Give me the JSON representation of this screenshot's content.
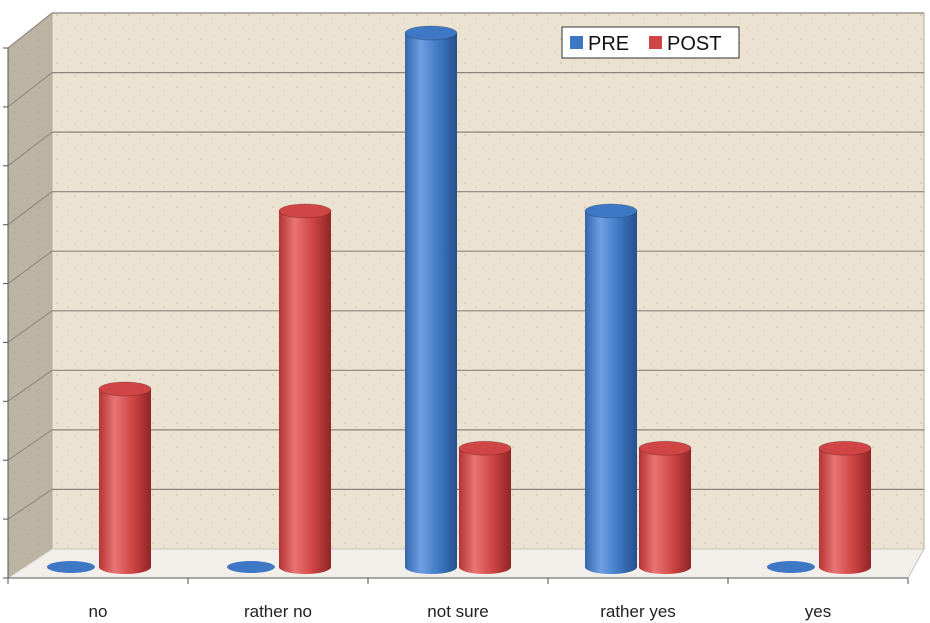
{
  "chart_data": {
    "type": "bar",
    "categories": [
      "no",
      "rather no",
      "not sure",
      "rather yes",
      "yes"
    ],
    "series": [
      {
        "name": "PRE",
        "values": [
          0,
          0,
          9,
          6,
          0
        ]
      },
      {
        "name": "POST",
        "values": [
          3,
          6,
          2,
          2,
          2
        ]
      }
    ],
    "ylim": [
      0,
      9
    ],
    "grid": true,
    "legend": "top-right",
    "style": "3d-cylinder",
    "colors": {
      "PRE": "#3e78c4",
      "POST": "#cf4444"
    }
  }
}
